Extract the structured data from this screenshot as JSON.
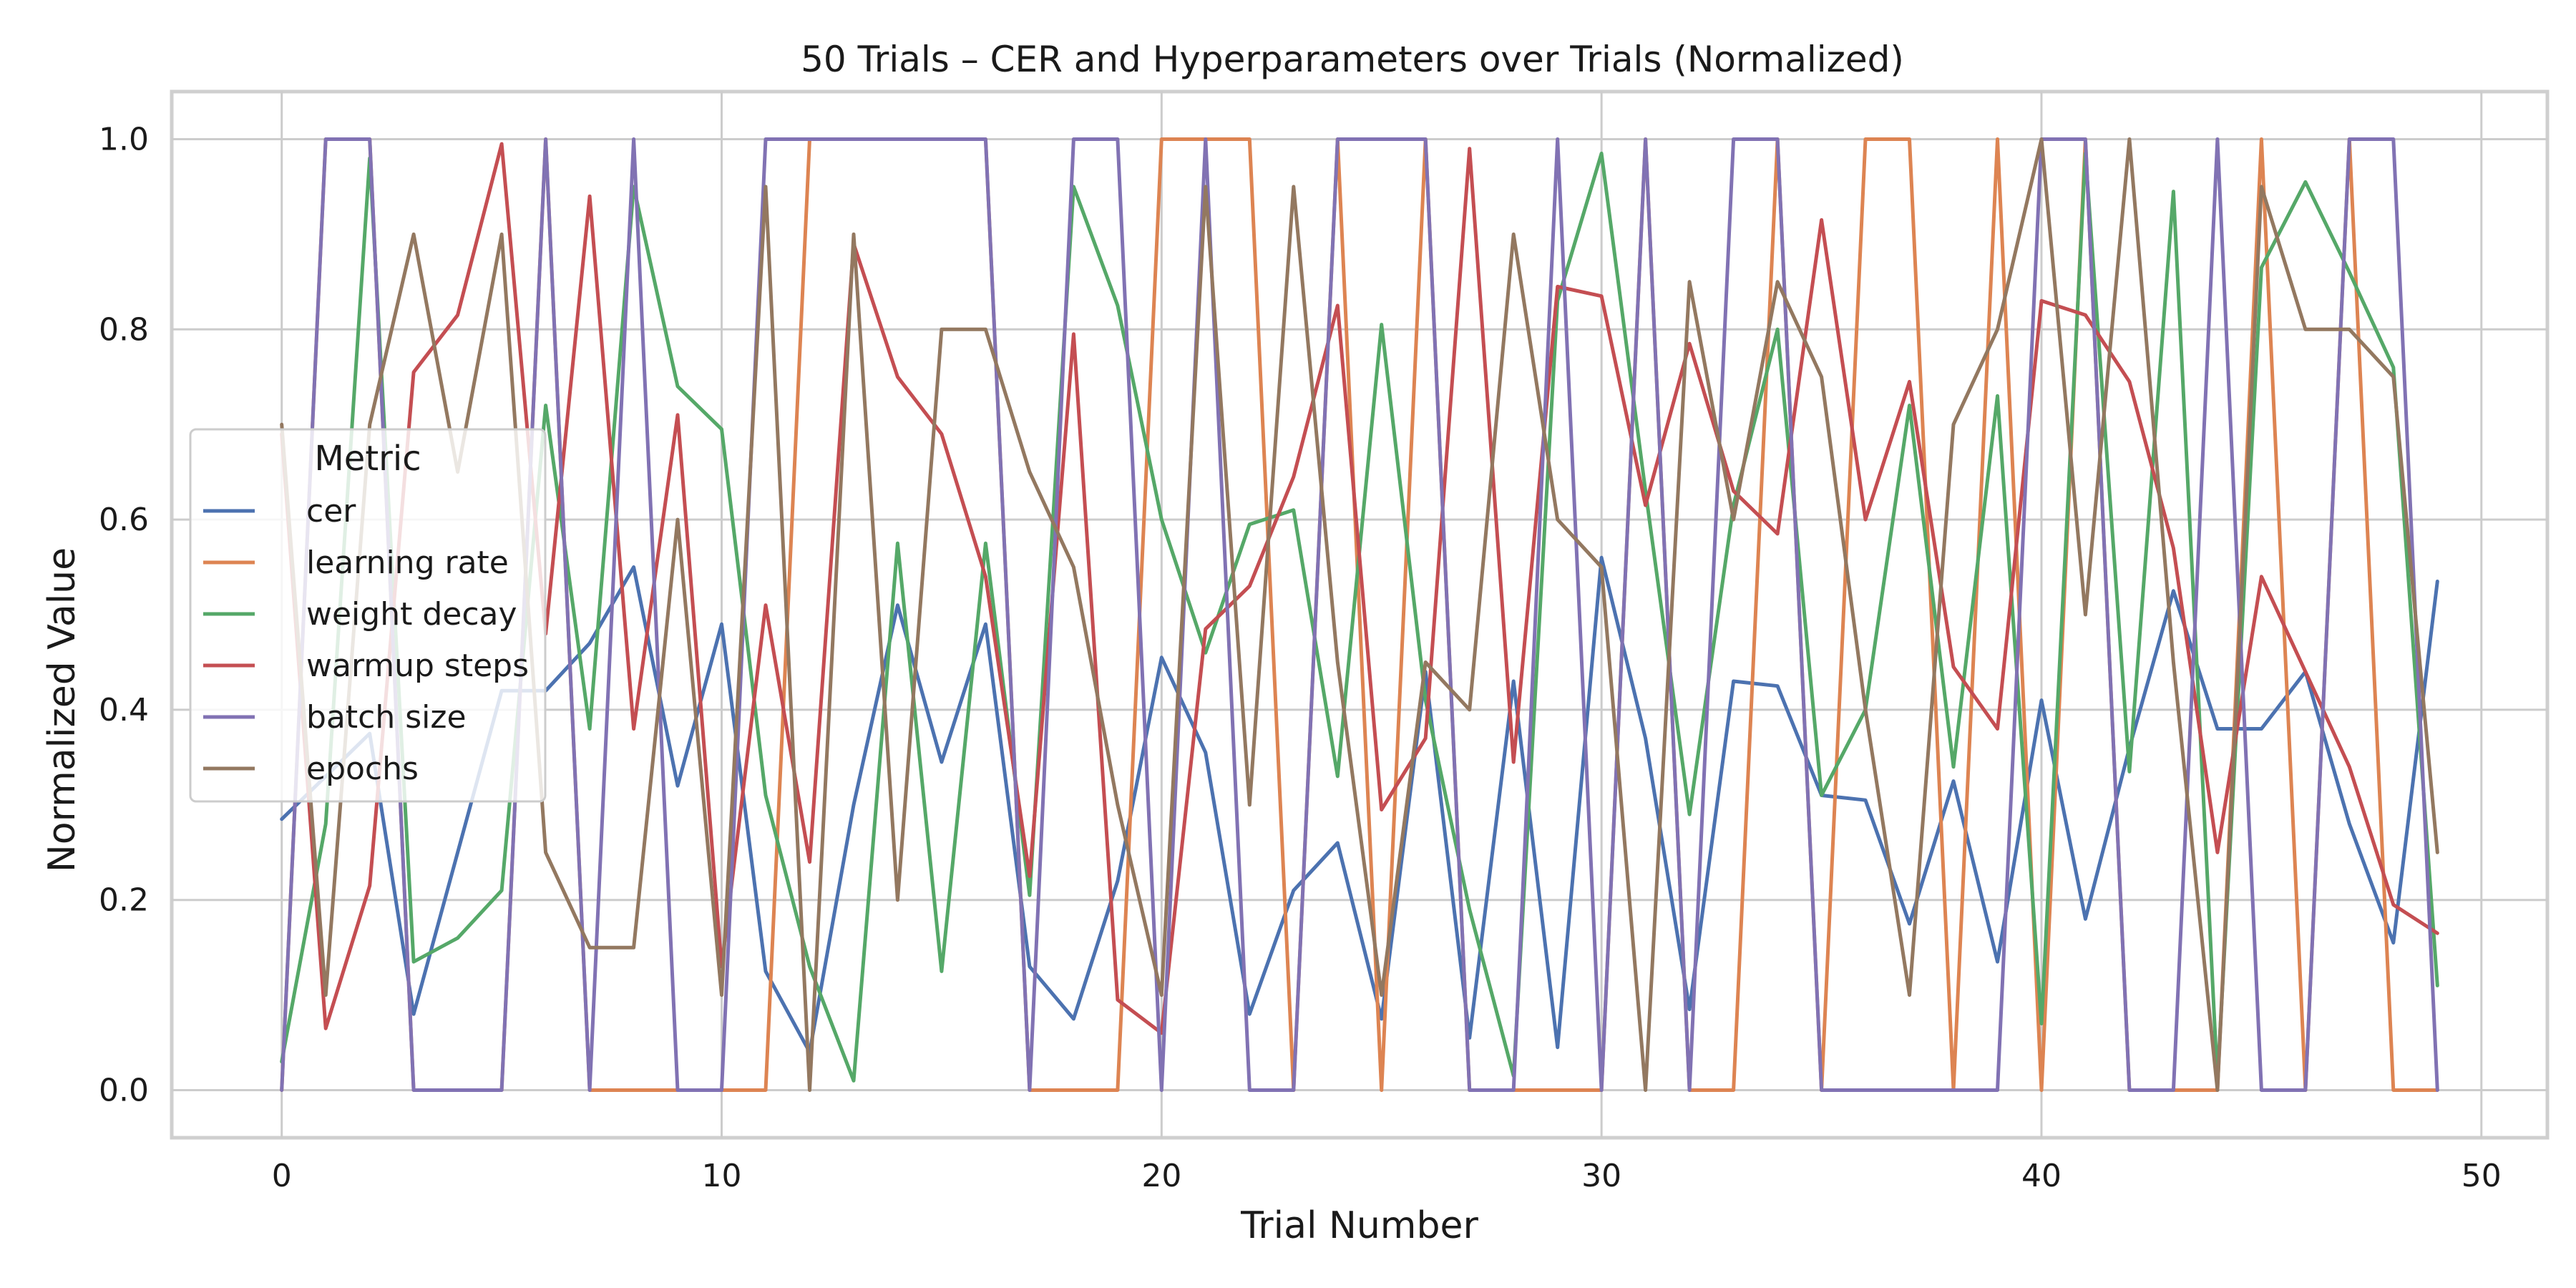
{
  "chart_data": {
    "type": "line",
    "title": "50 Trials – CER and Hyperparameters over Trials (Normalized)",
    "xlabel": "Trial Number",
    "ylabel": "Normalized Value",
    "xlim": [
      -2.5,
      51.5
    ],
    "ylim": [
      -0.05,
      1.05
    ],
    "xticks": [
      0,
      10,
      20,
      30,
      40,
      50
    ],
    "xtick_labels": [
      "0",
      "10",
      "20",
      "30",
      "40",
      "50"
    ],
    "yticks": [
      0.0,
      0.2,
      0.4,
      0.6,
      0.8,
      1.0
    ],
    "ytick_labels": [
      "0.0",
      "0.2",
      "0.4",
      "0.6",
      "0.8",
      "1.0"
    ],
    "grid": true,
    "legend": {
      "title": "Metric",
      "placement": "center-left"
    },
    "x": [
      0,
      1,
      2,
      3,
      4,
      5,
      6,
      7,
      8,
      9,
      10,
      11,
      12,
      13,
      14,
      15,
      16,
      17,
      18,
      19,
      20,
      21,
      22,
      23,
      24,
      25,
      26,
      27,
      28,
      29,
      30,
      31,
      32,
      33,
      34,
      35,
      36,
      37,
      38,
      39,
      40,
      41,
      42,
      43,
      44,
      45,
      46,
      47,
      48,
      49
    ],
    "series": [
      {
        "name": "cer",
        "color": "#4c72b0",
        "values": [
          0.285,
          0.33,
          0.375,
          0.08,
          0.25,
          0.42,
          0.42,
          0.47,
          0.55,
          0.32,
          0.49,
          0.125,
          0.04,
          0.3,
          0.51,
          0.345,
          0.49,
          0.13,
          0.075,
          0.22,
          0.455,
          0.355,
          0.08,
          0.21,
          0.26,
          0.075,
          0.44,
          0.055,
          0.43,
          0.045,
          0.56,
          0.37,
          0.085,
          0.43,
          0.425,
          0.31,
          0.305,
          0.175,
          0.325,
          0.135,
          0.41,
          0.18,
          0.36,
          0.525,
          0.38,
          0.38,
          0.44,
          0.28,
          0.155,
          0.535
        ]
      },
      {
        "name": "learning rate",
        "color": "#dd8452",
        "values": [
          0.0,
          1.0,
          1.0,
          0.0,
          0.0,
          0.0,
          1.0,
          0.0,
          0.0,
          0.0,
          0.0,
          0.0,
          1.0,
          1.0,
          1.0,
          1.0,
          1.0,
          0.0,
          0.0,
          0.0,
          1.0,
          1.0,
          1.0,
          0.0,
          1.0,
          0.0,
          1.0,
          0.0,
          0.0,
          0.0,
          0.0,
          1.0,
          0.0,
          0.0,
          1.0,
          0.0,
          1.0,
          1.0,
          0.0,
          1.0,
          0.0,
          1.0,
          0.0,
          0.0,
          0.0,
          1.0,
          0.0,
          1.0,
          0.0,
          0.0
        ]
      },
      {
        "name": "weight decay",
        "color": "#55a868",
        "values": [
          0.03,
          0.28,
          0.98,
          0.135,
          0.16,
          0.21,
          0.72,
          0.38,
          0.95,
          0.74,
          0.695,
          0.31,
          0.13,
          0.01,
          0.575,
          0.125,
          0.575,
          0.205,
          0.95,
          0.825,
          0.6,
          0.46,
          0.595,
          0.61,
          0.33,
          0.805,
          0.41,
          0.19,
          0.015,
          0.83,
          0.985,
          0.63,
          0.29,
          0.615,
          0.8,
          0.31,
          0.4,
          0.72,
          0.34,
          0.73,
          0.07,
          0.985,
          0.335,
          0.945,
          0.01,
          0.865,
          0.955,
          0.86,
          0.76,
          0.11
        ]
      },
      {
        "name": "warmup steps",
        "color": "#c44e52",
        "values": [
          0.69,
          0.065,
          0.215,
          0.755,
          0.815,
          0.995,
          0.48,
          0.94,
          0.38,
          0.71,
          0.13,
          0.51,
          0.24,
          0.89,
          0.75,
          0.69,
          0.54,
          0.225,
          0.795,
          0.095,
          0.06,
          0.485,
          0.53,
          0.645,
          0.825,
          0.295,
          0.37,
          0.99,
          0.345,
          0.845,
          0.835,
          0.615,
          0.785,
          0.63,
          0.585,
          0.915,
          0.6,
          0.745,
          0.445,
          0.38,
          0.83,
          0.815,
          0.745,
          0.57,
          0.25,
          0.54,
          0.44,
          0.34,
          0.195,
          0.165
        ]
      },
      {
        "name": "batch size",
        "color": "#8172b3",
        "values": [
          0.0,
          1.0,
          1.0,
          0.0,
          0.0,
          0.0,
          1.0,
          0.0,
          1.0,
          0.0,
          0.0,
          1.0,
          1.0,
          1.0,
          1.0,
          1.0,
          1.0,
          0.0,
          1.0,
          1.0,
          0.0,
          1.0,
          0.0,
          0.0,
          1.0,
          1.0,
          1.0,
          0.0,
          0.0,
          1.0,
          0.0,
          1.0,
          0.0,
          1.0,
          1.0,
          0.0,
          0.0,
          0.0,
          0.0,
          0.0,
          1.0,
          1.0,
          0.0,
          0.0,
          1.0,
          0.0,
          0.0,
          1.0,
          1.0,
          0.0
        ]
      },
      {
        "name": "epochs",
        "color": "#937860",
        "values": [
          0.7,
          0.1,
          0.7,
          0.9,
          0.65,
          0.9,
          0.25,
          0.15,
          0.15,
          0.6,
          0.1,
          0.95,
          0.0,
          0.9,
          0.2,
          0.8,
          0.8,
          0.65,
          0.55,
          0.3,
          0.1,
          0.95,
          0.3,
          0.95,
          0.45,
          0.1,
          0.45,
          0.4,
          0.9,
          0.6,
          0.55,
          0.0,
          0.85,
          0.6,
          0.85,
          0.75,
          0.4,
          0.1,
          0.7,
          0.8,
          1.0,
          0.5,
          1.0,
          0.45,
          0.0,
          0.95,
          0.8,
          0.8,
          0.75,
          0.25
        ]
      }
    ]
  }
}
